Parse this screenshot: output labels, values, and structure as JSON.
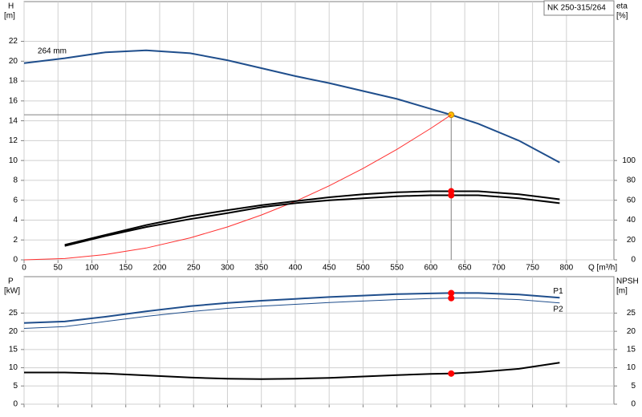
{
  "chart_data": [
    {
      "type": "line",
      "title": "NK 250-315/264",
      "annotation": "264 mm",
      "ylabel": "H",
      "yunit": "[m]",
      "y2label": "eta",
      "y2unit": "[%]",
      "xlabel": "Q [m³/h]",
      "xtick_labels": true,
      "x": [
        0,
        60,
        120,
        180,
        245,
        300,
        350,
        400,
        450,
        500,
        550,
        600,
        630,
        670,
        730,
        790
      ],
      "xlim": [
        0,
        870
      ],
      "xticks": [
        0,
        50,
        100,
        150,
        200,
        250,
        300,
        350,
        400,
        450,
        500,
        550,
        600,
        650,
        700,
        750,
        800
      ],
      "ylim": [
        0,
        26
      ],
      "yticks": [
        0,
        2,
        4,
        6,
        8,
        10,
        12,
        14,
        16,
        18,
        20,
        22
      ],
      "y2lim": [
        0,
        260
      ],
      "y2ticks": [
        0,
        20,
        40,
        60,
        80,
        100
      ],
      "grid": true,
      "operating_point": {
        "x": 630,
        "y": 14.6
      },
      "series": [
        {
          "color": "#1f4e8c",
          "width": 2,
          "marker_color": "#ffc000",
          "values": [
            19.8,
            20.3,
            20.9,
            21.1,
            20.8,
            20.1,
            19.3,
            18.5,
            17.8,
            17.0,
            16.2,
            15.2,
            14.6,
            13.7,
            12.0,
            9.8
          ]
        },
        {
          "color": "#ff3030",
          "width": 1,
          "values": [
            0,
            0.13,
            0.53,
            1.19,
            2.21,
            3.31,
            4.51,
            5.88,
            7.45,
            9.2,
            11.13,
            13.24,
            14.6,
            null,
            null,
            null
          ]
        },
        {
          "color": "#000000",
          "width": 2,
          "axis": "y2",
          "marker_color": "#ff0000",
          "values": [
            null,
            15,
            25,
            35,
            44,
            50,
            55,
            59,
            63,
            66,
            68,
            69,
            69,
            69,
            66,
            61
          ]
        },
        {
          "color": "#000000",
          "width": 2,
          "axis": "y2",
          "marker_color": "#ff0000",
          "values": [
            null,
            14,
            24,
            33,
            41,
            47,
            53,
            57,
            60,
            62,
            64,
            65,
            65,
            65,
            62,
            57
          ]
        }
      ]
    },
    {
      "type": "line",
      "ylabel": "P",
      "yunit": "[kW]",
      "y2label": "NPSH",
      "y2unit": "[m]",
      "xtick_labels": false,
      "x": [
        0,
        60,
        120,
        180,
        245,
        300,
        350,
        400,
        450,
        500,
        550,
        600,
        630,
        670,
        730,
        790
      ],
      "xlim": [
        0,
        870
      ],
      "xticks": [
        0,
        50,
        100,
        150,
        200,
        250,
        300,
        350,
        400,
        450,
        500,
        550,
        600,
        650,
        700,
        750,
        800
      ],
      "ylim": [
        0,
        35
      ],
      "yticks": [
        0,
        5,
        10,
        15,
        20,
        25
      ],
      "y2lim": [
        0,
        35
      ],
      "y2ticks": [
        0,
        5,
        10,
        15,
        20,
        25
      ],
      "grid": true,
      "operating_point": {
        "x": 630
      },
      "series": [
        {
          "name": "P1",
          "color": "#1f4e8c",
          "width": 2,
          "marker_color": "#ff0000",
          "values": [
            22.3,
            22.7,
            24.0,
            25.5,
            26.9,
            27.8,
            28.4,
            28.9,
            29.4,
            29.8,
            30.2,
            30.4,
            30.5,
            30.5,
            30.1,
            29.2
          ]
        },
        {
          "name": "P2",
          "color": "#1f4e8c",
          "width": 1,
          "marker_color": "#ff0000",
          "values": [
            20.8,
            21.3,
            22.7,
            24.1,
            25.4,
            26.3,
            26.9,
            27.4,
            27.9,
            28.3,
            28.7,
            29.0,
            29.1,
            29.1,
            28.7,
            27.8
          ]
        },
        {
          "color": "#000000",
          "width": 2,
          "axis": "y2",
          "marker_color": "#ff0000",
          "values": [
            8.7,
            8.7,
            8.4,
            7.9,
            7.3,
            7.0,
            6.9,
            7.0,
            7.2,
            7.6,
            8.0,
            8.3,
            8.4,
            8.8,
            9.7,
            11.4
          ]
        }
      ]
    }
  ]
}
